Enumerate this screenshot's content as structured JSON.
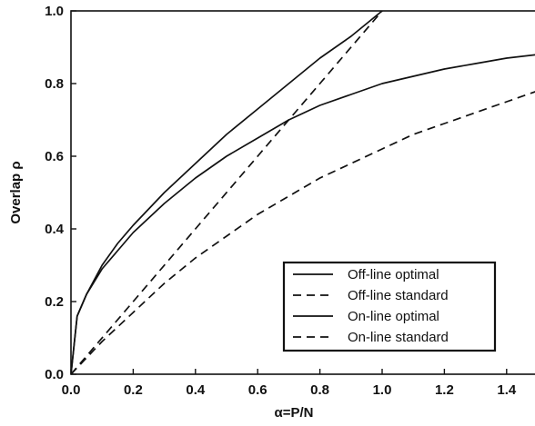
{
  "chart_data": {
    "type": "line",
    "title": "",
    "xlabel": "α=P/N",
    "ylabel": "Overlap ρ",
    "xlim": [
      0.0,
      1.5
    ],
    "ylim": [
      0.0,
      1.0
    ],
    "xticks": [
      "0.0",
      "0.2",
      "0.4",
      "0.6",
      "0.8",
      "1.0",
      "1.2",
      "1.4"
    ],
    "yticks": [
      "0.0",
      "0.2",
      "0.4",
      "0.6",
      "0.8",
      "1.0"
    ],
    "grid": false,
    "legend_position": "bottom-right",
    "series": [
      {
        "name": "Off-line optimal",
        "style": "solid",
        "x": [
          0.0,
          0.02,
          0.05,
          0.1,
          0.15,
          0.2,
          0.3,
          0.4,
          0.5,
          0.6,
          0.7,
          0.8,
          0.9,
          1.0,
          1.1,
          1.2,
          1.3,
          1.4,
          1.5
        ],
        "y": [
          0.0,
          0.16,
          0.22,
          0.29,
          0.34,
          0.39,
          0.47,
          0.54,
          0.6,
          0.65,
          0.7,
          0.74,
          0.77,
          0.8,
          0.82,
          0.84,
          0.855,
          0.87,
          0.88
        ]
      },
      {
        "name": "Off-line standard",
        "style": "dashed",
        "x": [
          0.0,
          0.2,
          0.4,
          0.6,
          0.72,
          0.8,
          0.9,
          1.0
        ],
        "y": [
          0.0,
          0.2,
          0.4,
          0.6,
          0.72,
          0.8,
          0.9,
          1.0
        ]
      },
      {
        "name": "On-line optimal",
        "style": "solid",
        "x": [
          0.0,
          0.02,
          0.05,
          0.1,
          0.15,
          0.2,
          0.3,
          0.4,
          0.5,
          0.6,
          0.7,
          0.8,
          0.9,
          1.0
        ],
        "y": [
          0.0,
          0.16,
          0.22,
          0.3,
          0.36,
          0.41,
          0.5,
          0.58,
          0.66,
          0.73,
          0.8,
          0.87,
          0.93,
          1.0
        ]
      },
      {
        "name": "On-line standard",
        "style": "dashed",
        "x": [
          0.0,
          0.1,
          0.2,
          0.3,
          0.4,
          0.5,
          0.6,
          0.7,
          0.8,
          0.9,
          1.0,
          1.1,
          1.2,
          1.3,
          1.4,
          1.5
        ],
        "y": [
          0.0,
          0.09,
          0.17,
          0.25,
          0.32,
          0.38,
          0.44,
          0.49,
          0.54,
          0.58,
          0.62,
          0.66,
          0.69,
          0.72,
          0.75,
          0.78
        ]
      }
    ]
  }
}
